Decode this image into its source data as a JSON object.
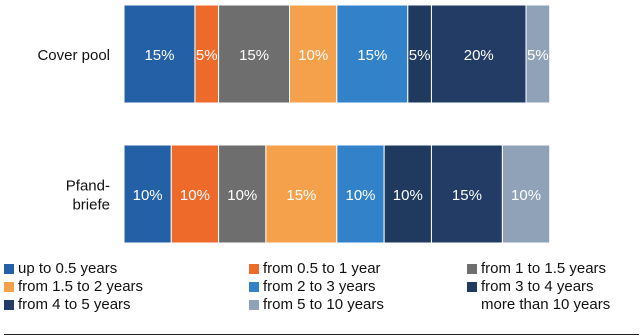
{
  "chart_data": {
    "type": "stacked-bar-horizontal",
    "categories": [
      "Cover pool",
      "Pfand-\nbriefe"
    ],
    "xlim": [
      0,
      100
    ],
    "unit": "%",
    "series": [
      {
        "name": "up to 0.5 years",
        "color": "#2360a5",
        "values": [
          15,
          10
        ]
      },
      {
        "name": "from 0.5 to 1 year",
        "color": "#ee6a2a",
        "values": [
          5,
          10
        ]
      },
      {
        "name": "from 1 to 1.5 years",
        "color": "#6e6e6e",
        "values": [
          15,
          10
        ]
      },
      {
        "name": "from 1.5 to 2 years",
        "color": "#f5a04b",
        "values": [
          10,
          15
        ]
      },
      {
        "name": "from 2 to 3 years",
        "color": "#3182c8",
        "values": [
          15,
          10
        ]
      },
      {
        "name": "from 3 to 4 years",
        "color": "#1f3a5e",
        "values": [
          5,
          10
        ]
      },
      {
        "name": "from 4 to 5 years",
        "color": "#223c66",
        "values": [
          20,
          15
        ]
      },
      {
        "name": "from 5 to 10 years",
        "color": "#8fa2b8",
        "values": [
          5,
          10
        ]
      },
      {
        "name": "more than 10 years",
        "color": "#ffffff",
        "values": [
          0,
          0
        ]
      }
    ],
    "legend_position": "bottom",
    "grid": false
  }
}
